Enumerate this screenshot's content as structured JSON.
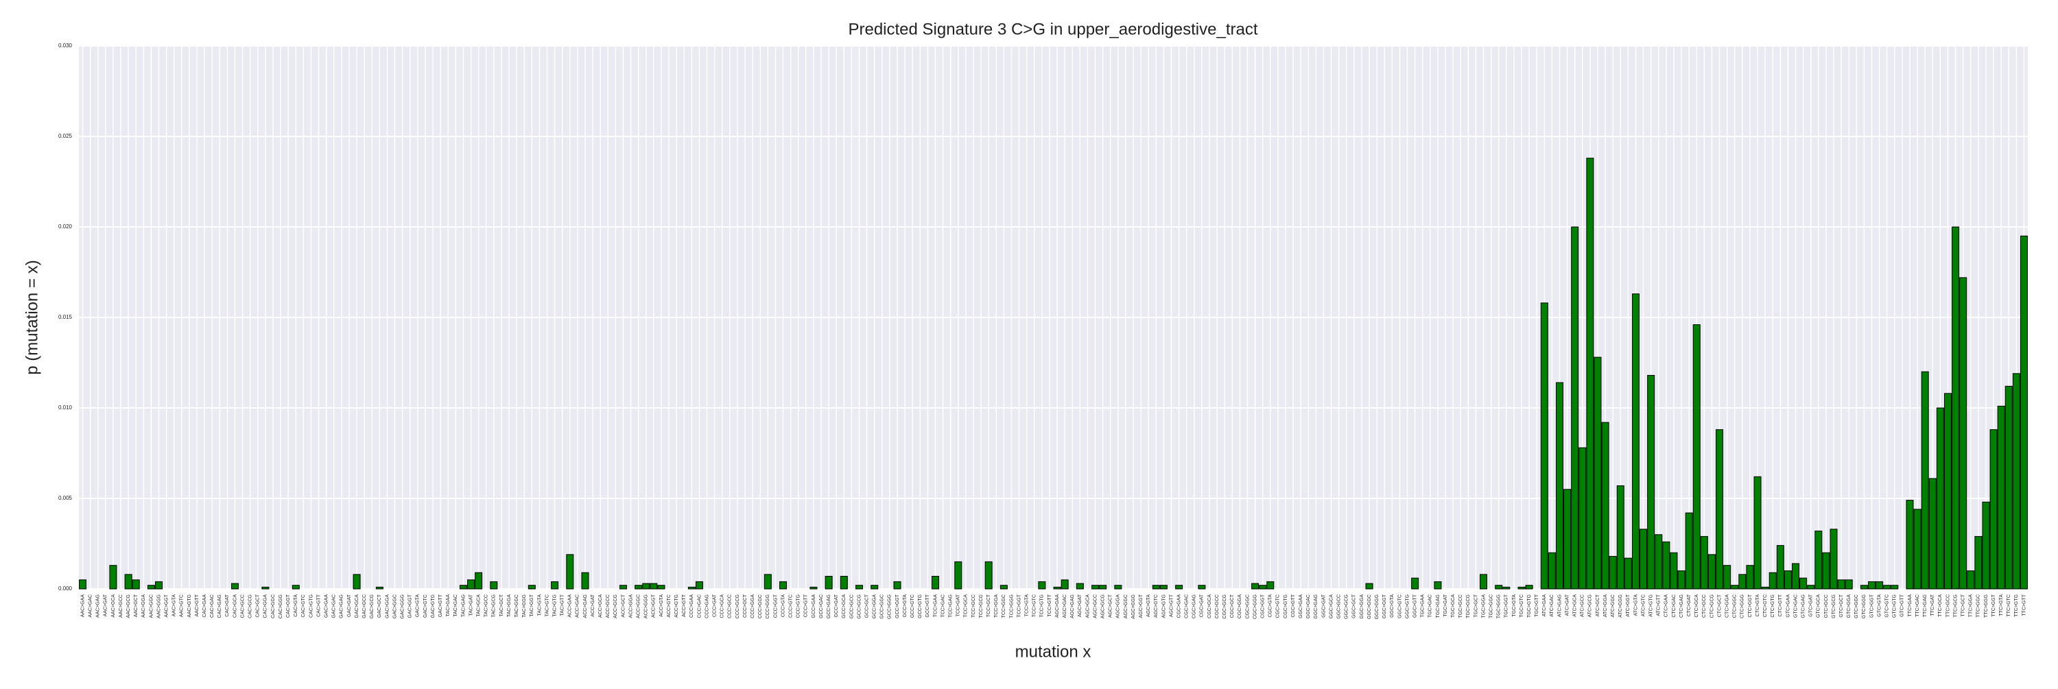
{
  "chart_data": {
    "type": "bar",
    "title": "Predicted Signature 3 C>G in upper_aerodigestive_tract",
    "xlabel": "mutation x",
    "ylabel": "p (mutation = x)",
    "color": "#008000",
    "grid": true,
    "ylim": [
      0,
      0.03
    ],
    "yticks": [
      {
        "value": 0,
        "label": "0.000"
      },
      {
        "value": 0.005,
        "label": "0.005"
      },
      {
        "value": 0.01,
        "label": "0.010"
      },
      {
        "value": 0.015,
        "label": "0.015"
      },
      {
        "value": 0.02,
        "label": "0.020"
      },
      {
        "value": 0.025,
        "label": "0.025"
      },
      {
        "value": 0.03,
        "label": "0.030"
      }
    ],
    "categories": [
      "AAC>GAA",
      "AAC>GAC",
      "AAC>GAG",
      "AAC>GAT",
      "AAC>GCA",
      "AAC>GCC",
      "AAC>GCG",
      "AAC>GCT",
      "AAC>GGA",
      "AAC>GGC",
      "AAC>GGG",
      "AAC>GGT",
      "AAC>GTA",
      "AAC>GTC",
      "AAC>GTG",
      "AAC>GTT",
      "CAC>GAA",
      "CAC>GAC",
      "CAC>GAG",
      "CAC>GAT",
      "CAC>GCA",
      "CAC>GCC",
      "CAC>GCG",
      "CAC>GCT",
      "CAC>GGA",
      "CAC>GGC",
      "CAC>GGG",
      "CAC>GGT",
      "CAC>GTA",
      "CAC>GTC",
      "CAC>GTG",
      "CAC>GTT",
      "GAC>GAA",
      "GAC>GAC",
      "GAC>GAG",
      "GAC>GAT",
      "GAC>GCA",
      "GAC>GCC",
      "GAC>GCG",
      "GAC>GCT",
      "GAC>GGA",
      "GAC>GGC",
      "GAC>GGG",
      "GAC>GGT",
      "GAC>GTA",
      "GAC>GTC",
      "GAC>GTG",
      "GAC>GTT",
      "TAC>GAA",
      "TAC>GAC",
      "TAC>GAG",
      "TAC>GAT",
      "TAC>GCA",
      "TAC>GCC",
      "TAC>GCG",
      "TAC>GCT",
      "TAC>GGA",
      "TAC>GGC",
      "TAC>GGG",
      "TAC>GGT",
      "TAC>GTA",
      "TAC>GTC",
      "TAC>GTG",
      "TAC>GTT",
      "ACC>GAA",
      "ACC>GAC",
      "ACC>GAG",
      "ACC>GAT",
      "ACC>GCA",
      "ACC>GCC",
      "ACC>GCG",
      "ACC>GCT",
      "ACC>GGA",
      "ACC>GGC",
      "ACC>GGG",
      "ACC>GGT",
      "ACC>GTA",
      "ACC>GTC",
      "ACC>GTG",
      "ACC>GTT",
      "CCC>GAA",
      "CCC>GAC",
      "CCC>GAG",
      "CCC>GAT",
      "CCC>GCA",
      "CCC>GCC",
      "CCC>GCG",
      "CCC>GCT",
      "CCC>GGA",
      "CCC>GGC",
      "CCC>GGG",
      "CCC>GGT",
      "CCC>GTA",
      "CCC>GTC",
      "CCC>GTG",
      "CCC>GTT",
      "GCC>GAA",
      "GCC>GAC",
      "GCC>GAG",
      "GCC>GAT",
      "GCC>GCA",
      "GCC>GCC",
      "GCC>GCG",
      "GCC>GCT",
      "GCC>GGA",
      "GCC>GGC",
      "GCC>GGG",
      "GCC>GGT",
      "GCC>GTA",
      "GCC>GTC",
      "GCC>GTG",
      "GCC>GTT",
      "TCC>GAA",
      "TCC>GAC",
      "TCC>GAG",
      "TCC>GAT",
      "TCC>GCA",
      "TCC>GCC",
      "TCC>GCG",
      "TCC>GCT",
      "TCC>GGA",
      "TCC>GGC",
      "TCC>GGG",
      "TCC>GGT",
      "TCC>GTA",
      "TCC>GTC",
      "TCC>GTG",
      "TCC>GTT",
      "AGC>GAA",
      "AGC>GAC",
      "AGC>GAG",
      "AGC>GAT",
      "AGC>GCA",
      "AGC>GCC",
      "AGC>GCG",
      "AGC>GCT",
      "AGC>GGA",
      "AGC>GGC",
      "AGC>GGG",
      "AGC>GGT",
      "AGC>GTA",
      "AGC>GTC",
      "AGC>GTG",
      "AGC>GTT",
      "CGC>GAA",
      "CGC>GAC",
      "CGC>GAG",
      "CGC>GAT",
      "CGC>GCA",
      "CGC>GCC",
      "CGC>GCG",
      "CGC>GCT",
      "CGC>GGA",
      "CGC>GGC",
      "CGC>GGG",
      "CGC>GGT",
      "CGC>GTA",
      "CGC>GTC",
      "CGC>GTG",
      "CGC>GTT",
      "GGC>GAA",
      "GGC>GAC",
      "GGC>GAG",
      "GGC>GAT",
      "GGC>GCA",
      "GGC>GCC",
      "GGC>GCG",
      "GGC>GCT",
      "GGC>GGA",
      "GGC>GGC",
      "GGC>GGG",
      "GGC>GGT",
      "GGC>GTA",
      "GGC>GTC",
      "GGC>GTG",
      "GGC>GTT",
      "TGC>GAA",
      "TGC>GAC",
      "TGC>GAG",
      "TGC>GAT",
      "TGC>GCA",
      "TGC>GCC",
      "TGC>GCG",
      "TGC>GCT",
      "TGC>GGA",
      "TGC>GGC",
      "TGC>GGG",
      "TGC>GGT",
      "TGC>GTA",
      "TGC>GTC",
      "TGC>GTG",
      "TGC>GTT",
      "ATC>GAA",
      "ATC>GAC",
      "ATC>GAG",
      "ATC>GAT",
      "ATC>GCA",
      "ATC>GCC",
      "ATC>GCG",
      "ATC>GCT",
      "ATC>GGA",
      "ATC>GGC",
      "ATC>GGG",
      "ATC>GGT",
      "ATC>GTA",
      "ATC>GTC",
      "ATC>GTG",
      "ATC>GTT",
      "CTC>GAA",
      "CTC>GAC",
      "CTC>GAG",
      "CTC>GAT",
      "CTC>GCA",
      "CTC>GCC",
      "CTC>GCG",
      "CTC>GCT",
      "CTC>GGA",
      "CTC>GGC",
      "CTC>GGG",
      "CTC>GGT",
      "CTC>GTA",
      "CTC>GTC",
      "CTC>GTG",
      "CTC>GTT",
      "GTC>GAA",
      "GTC>GAC",
      "GTC>GAG",
      "GTC>GAT",
      "GTC>GCA",
      "GTC>GCC",
      "GTC>GCG",
      "GTC>GCT",
      "GTC>GGA",
      "GTC>GGC",
      "GTC>GGG",
      "GTC>GGT",
      "GTC>GTA",
      "GTC>GTC",
      "GTC>GTG",
      "GTC>GTT",
      "TTC>GAA",
      "TTC>GAC",
      "TTC>GAG",
      "TTC>GAT",
      "TTC>GCA",
      "TTC>GCC",
      "TTC>GCG",
      "TTC>GCT",
      "TTC>GGA",
      "TTC>GGC",
      "TTC>GGG",
      "TTC>GGT",
      "TTC>GTA",
      "TTC>GTC",
      "TTC>GTG",
      "TTC>GTT"
    ],
    "values": [
      0.0005,
      0,
      0,
      0,
      0.0013,
      0,
      0.0008,
      0.0005,
      0,
      0.0002,
      0.0004,
      0,
      0,
      0,
      0,
      0,
      0,
      0,
      0,
      0,
      0.0003,
      0,
      0,
      0,
      0.0001,
      0,
      0,
      0,
      0.0002,
      0,
      0,
      0,
      0,
      0,
      0,
      0,
      0.0008,
      0,
      0,
      0.0001,
      0,
      0,
      0,
      0,
      0,
      0,
      0,
      0,
      0,
      0,
      0.0002,
      0.0005,
      0.0009,
      0,
      0.0004,
      0,
      0,
      0,
      0,
      0.0002,
      0,
      0,
      0.0004,
      0,
      0.0019,
      0,
      0.0009,
      0,
      0,
      0,
      0,
      0.0002,
      0,
      0.0002,
      0.0003,
      0.0003,
      0.0002,
      0,
      0,
      0,
      0.0001,
      0.0004,
      0,
      0,
      0,
      0,
      0,
      0,
      0,
      0,
      0.0008,
      0,
      0.0004,
      0,
      0,
      0,
      0.0001,
      0,
      0.0007,
      0,
      0.0007,
      0,
      0.0002,
      0,
      0.0002,
      0,
      0,
      0.0004,
      0,
      0,
      0,
      0,
      0.0007,
      0,
      0,
      0.0015,
      0,
      0,
      0,
      0.0015,
      0,
      0.0002,
      0,
      0,
      0,
      0,
      0.0004,
      0,
      0.0001,
      0.0005,
      0,
      0.0003,
      0,
      0.0002,
      0.0002,
      0,
      0.0002,
      0,
      0,
      0,
      0,
      0.0002,
      0.0002,
      0,
      0.0002,
      0,
      0,
      0.0002,
      0,
      0,
      0,
      0,
      0,
      0,
      0.0003,
      0.0002,
      0.0004,
      0,
      0,
      0,
      0,
      0,
      0,
      0,
      0,
      0,
      0,
      0,
      0,
      0.0003,
      0,
      0,
      0,
      0,
      0,
      0.0006,
      0,
      0,
      0.0004,
      0,
      0,
      0,
      0,
      0,
      0.0008,
      0,
      0.0002,
      0.0001,
      0,
      0.0001,
      0.0002,
      0,
      0.0158,
      0.002,
      0.0114,
      0.0055,
      0.02,
      0.0078,
      0.0238,
      0.0128,
      0.0092,
      0.0018,
      0.0057,
      0.0017,
      0.0163,
      0.0033,
      0.0118,
      0.003,
      0.0026,
      0.002,
      0.001,
      0.0042,
      0.0146,
      0.0029,
      0.0019,
      0.0088,
      0.0013,
      0.0002,
      0.0008,
      0.0013,
      0.0062,
      0.0001,
      0.0009,
      0.0024,
      0.001,
      0.0014,
      0.0006,
      0.0002,
      0.0032,
      0.002,
      0.0033,
      0.0005,
      0.0005,
      0,
      0.0002,
      0.0004,
      0.0004,
      0.0002,
      0.0002,
      0,
      0.0049,
      0.0044,
      0.012,
      0.0061,
      0.01,
      0.0108,
      0.02,
      0.0172,
      0.001,
      0.0029,
      0.0048,
      0.0088,
      0.0101,
      0.0112,
      0.0119,
      0.0195
    ]
  }
}
